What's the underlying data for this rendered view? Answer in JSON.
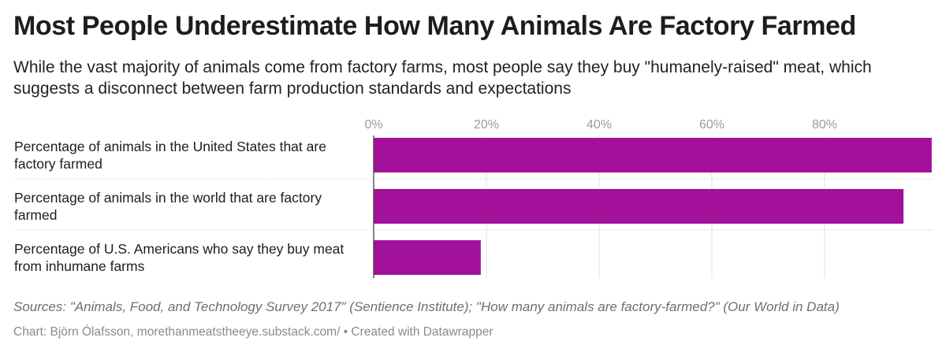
{
  "header": {
    "title": "Most People Underestimate How Many Animals Are Factory Farmed",
    "subtitle": "While the vast majority of animals come from factory farms, most people say they buy \"humanely-raised\" meat, which suggests a disconnect between farm production standards and expectations"
  },
  "chart_data": {
    "type": "bar",
    "orientation": "horizontal",
    "categories": [
      "Percentage of animals in the United States that are factory farmed",
      "Percentage of animals in the world that are factory farmed",
      "Percentage of U.S. Americans who say they buy meat from inhumane farms"
    ],
    "values": [
      99,
      94,
      19
    ],
    "unit": "%",
    "xlim": [
      0,
      100
    ],
    "ticks": [
      0,
      20,
      40,
      60,
      80
    ],
    "tick_labels": [
      "0%",
      "20%",
      "40%",
      "60%",
      "80%"
    ],
    "grid": true,
    "axis_position": "top",
    "bar_color": "#a3119a",
    "title": "",
    "xlabel": "",
    "ylabel": ""
  },
  "footer": {
    "sources": "Sources: \"Animals, Food, and Technology Survey 2017\" (Sentience Institute); \"How many animals are factory-farmed?\" (Our World in Data)",
    "byline": "Chart: Björn Ólafsson, morethanmeatstheeye.substack.com/ • Created with Datawrapper"
  }
}
